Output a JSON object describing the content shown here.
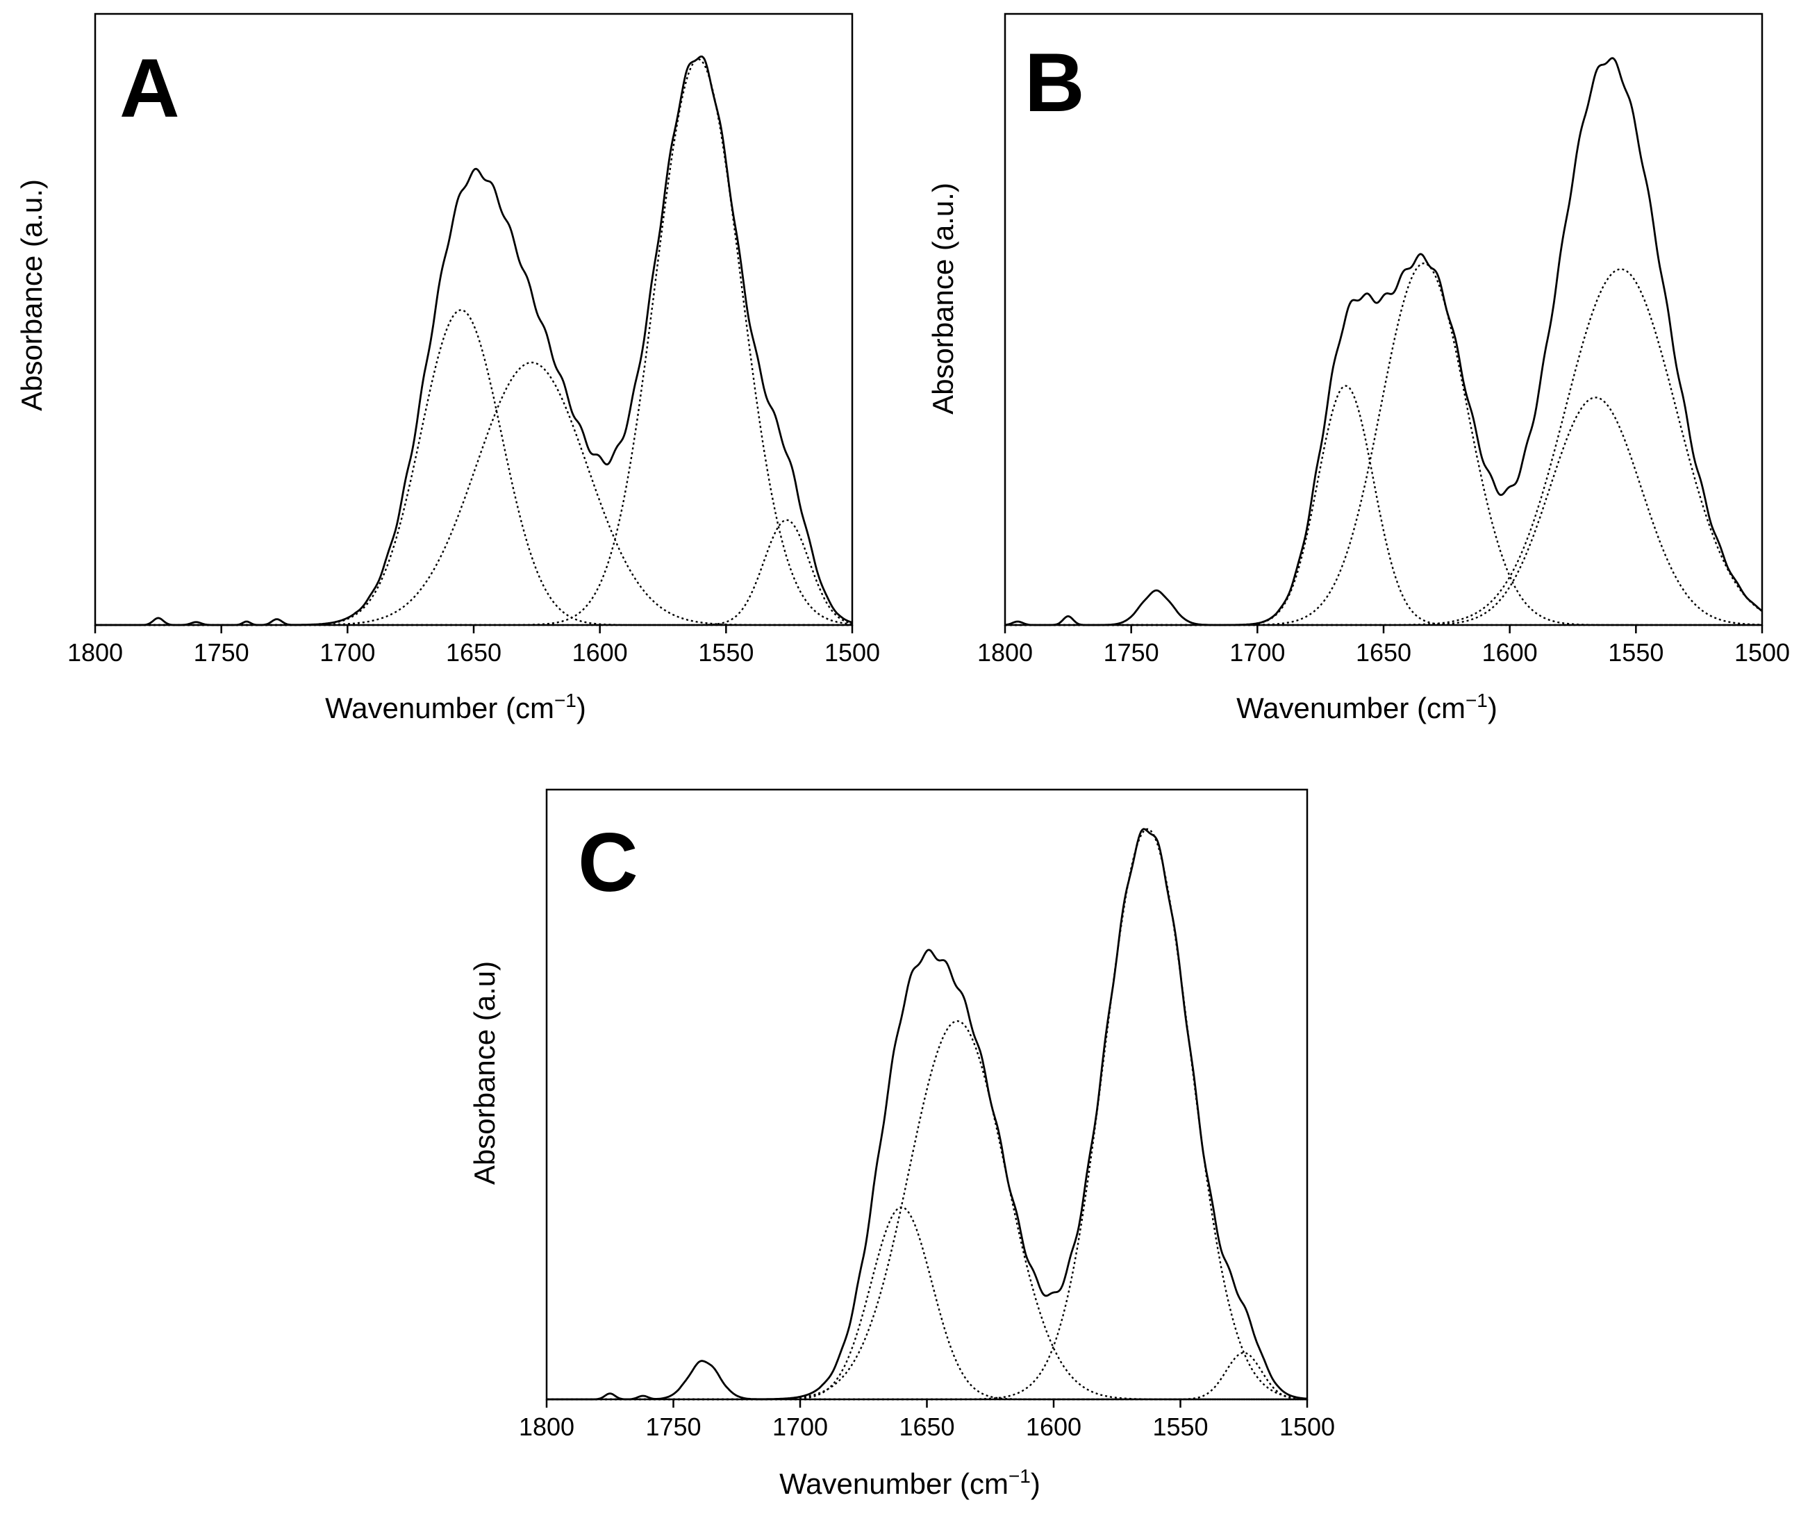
{
  "chart_data": [
    {
      "type": "line",
      "panel": "A",
      "xlabel": "Wavenumber (cm",
      "xlabel_sup": "−1",
      "xlabel_end": ")",
      "ylabel": "Absorbance (a.u.)",
      "xlim": [
        1800,
        1500
      ],
      "ylim": [
        0,
        1.0
      ],
      "xticks": [
        "1800",
        "1750",
        "1700",
        "1650",
        "1600",
        "1550",
        "1500"
      ],
      "xtick_values": [
        1800,
        1750,
        1700,
        1650,
        1600,
        1550,
        1500
      ],
      "baseline_bumps": [
        [
          1775,
          0.012,
          2
        ],
        [
          1760,
          0.005,
          2
        ],
        [
          1740,
          0.006,
          1.5
        ],
        [
          1728,
          0.01,
          2
        ]
      ],
      "components": [
        {
          "name": "component-1",
          "center": 1655,
          "height": 0.54,
          "width": 16
        },
        {
          "name": "component-2",
          "center": 1627,
          "height": 0.45,
          "width": 22
        },
        {
          "name": "component-3",
          "center": 1561,
          "height": 0.97,
          "width": 17
        },
        {
          "name": "component-4",
          "center": 1526,
          "height": 0.18,
          "width": 9
        }
      ]
    },
    {
      "type": "line",
      "panel": "B",
      "xlabel": "Wavenumber (cm",
      "xlabel_sup": "−1",
      "xlabel_end": ")",
      "ylabel": "Absorbance (a.u.)",
      "xlim": [
        1800,
        1500
      ],
      "ylim": [
        0,
        1.0
      ],
      "xticks": [
        "1800",
        "1750",
        "1700",
        "1650",
        "1600",
        "1550",
        "1500"
      ],
      "xtick_values": [
        1800,
        1750,
        1700,
        1650,
        1600,
        1550,
        1500
      ],
      "baseline_bumps": [
        [
          1795,
          0.006,
          2
        ],
        [
          1775,
          0.015,
          2
        ],
        [
          1740,
          0.058,
          6
        ]
      ],
      "components": [
        {
          "name": "component-1",
          "center": 1665,
          "height": 0.41,
          "width": 11
        },
        {
          "name": "component-2",
          "center": 1634,
          "height": 0.62,
          "width": 17
        },
        {
          "name": "component-3",
          "center": 1556,
          "height": 0.61,
          "width": 22
        },
        {
          "name": "component-4",
          "center": 1566,
          "height": 0.39,
          "width": 18
        }
      ]
    },
    {
      "type": "line",
      "panel": "C",
      "xlabel": "Wavenumber (cm",
      "xlabel_sup": "−1",
      "xlabel_end": ")",
      "ylabel": "Absorbance (a.u)",
      "xlim": [
        1800,
        1500
      ],
      "ylim": [
        0,
        1.0
      ],
      "xticks": [
        "1800",
        "1750",
        "1700",
        "1650",
        "1600",
        "1550",
        "1500"
      ],
      "xtick_values": [
        1800,
        1750,
        1700,
        1650,
        1600,
        1550,
        1500
      ],
      "baseline_bumps": [
        [
          1775,
          0.01,
          2
        ],
        [
          1762,
          0.006,
          2
        ],
        [
          1738,
          0.066,
          6
        ]
      ],
      "components": [
        {
          "name": "component-1",
          "center": 1660,
          "height": 0.33,
          "width": 12
        },
        {
          "name": "component-2",
          "center": 1638,
          "height": 0.65,
          "width": 19
        },
        {
          "name": "component-3",
          "center": 1563,
          "height": 0.98,
          "width": 17
        },
        {
          "name": "component-4",
          "center": 1525,
          "height": 0.08,
          "width": 7
        }
      ]
    }
  ]
}
